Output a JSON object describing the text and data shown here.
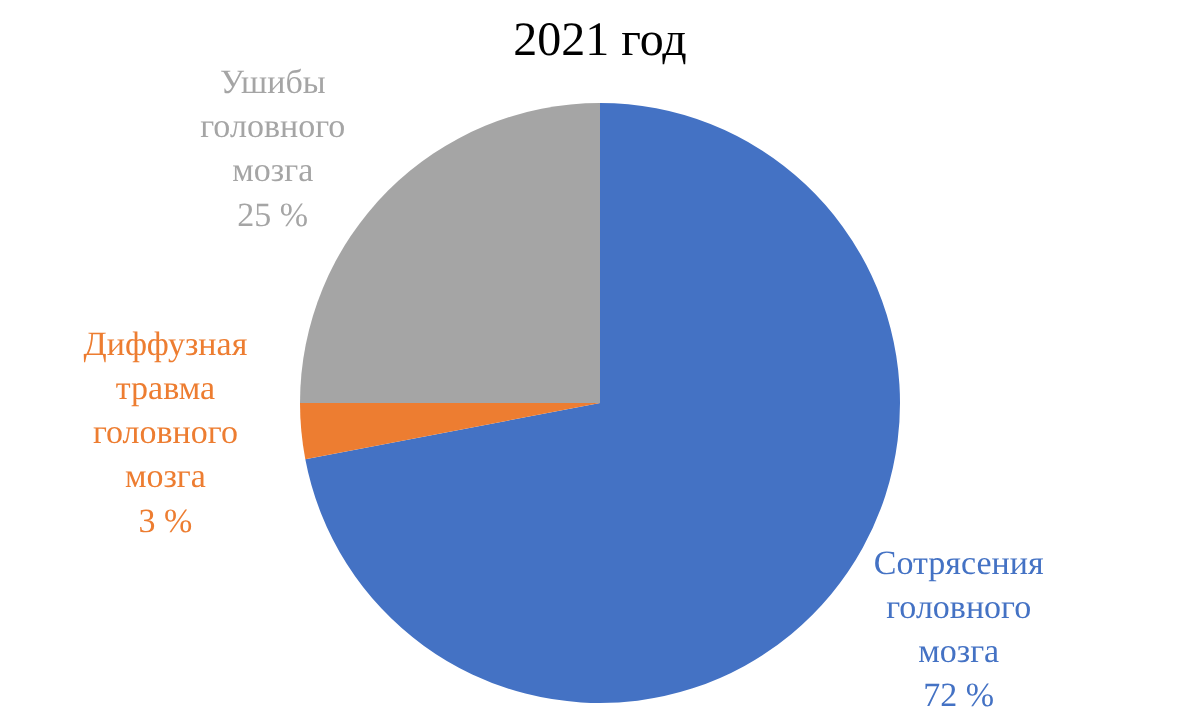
{
  "chart_data": {
    "type": "pie",
    "title": "2021 год",
    "categories": [
      "Сотрясения головного мозга",
      "Диффузная травма головного мозга",
      "Ушибы головного мозга"
    ],
    "values": [
      72,
      3,
      25
    ],
    "value_labels": [
      "72 %",
      "3 %",
      "25 %"
    ],
    "colors": [
      "#4472c4",
      "#ed7d31",
      "#a5a5a5"
    ],
    "legend": false
  }
}
